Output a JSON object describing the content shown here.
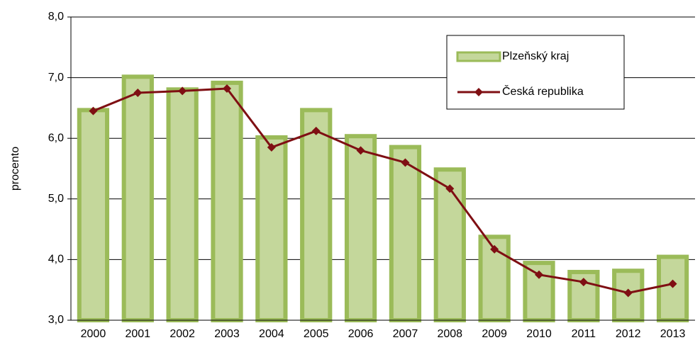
{
  "chart_data": {
    "type": "bar_line",
    "y_label": "procento",
    "categories": [
      "2000",
      "2001",
      "2002",
      "2003",
      "2004",
      "2005",
      "2006",
      "2007",
      "2008",
      "2009",
      "2010",
      "2011",
      "2012",
      "2013"
    ],
    "series": [
      {
        "name": "Plzeňský kraj",
        "type": "bar",
        "color": "#c4d79b",
        "border_color": "#9bbb59",
        "values": [
          6.5,
          7.05,
          6.84,
          6.95,
          6.05,
          6.5,
          6.07,
          5.89,
          5.52,
          4.41,
          3.98,
          3.83,
          3.85,
          4.08
        ]
      },
      {
        "name": "Česká republika",
        "type": "line",
        "color": "#7f0f13",
        "values": [
          6.45,
          6.75,
          6.78,
          6.82,
          5.85,
          6.12,
          5.8,
          5.6,
          5.17,
          4.17,
          3.75,
          3.63,
          3.45,
          3.6
        ]
      }
    ],
    "ylim": [
      3,
      8
    ],
    "yticks": [
      {
        "value": 3,
        "label": "3,0"
      },
      {
        "value": 4,
        "label": "4,0"
      },
      {
        "value": 5,
        "label": "5,0"
      },
      {
        "value": 6,
        "label": "6,0"
      },
      {
        "value": 7,
        "label": "7,0"
      },
      {
        "value": 8,
        "label": "8,0"
      }
    ],
    "grid": true
  }
}
